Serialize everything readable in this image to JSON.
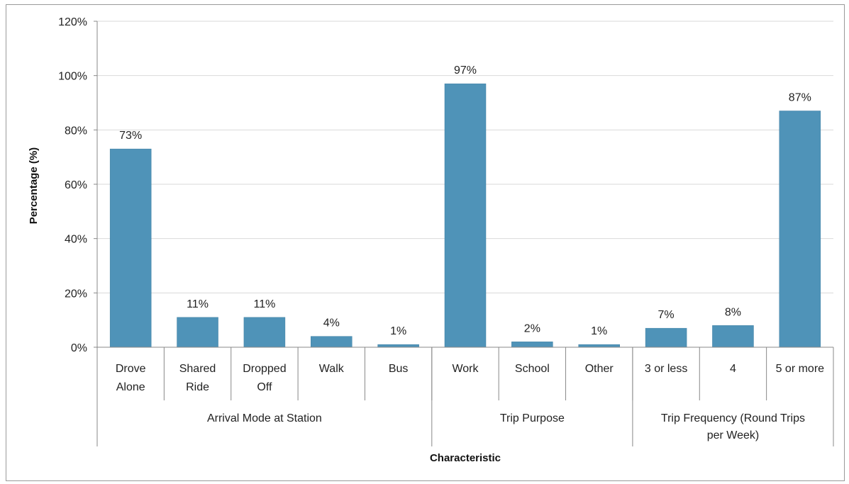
{
  "chart_data": {
    "type": "bar",
    "xlabel": "Characteristic",
    "ylabel": "Percentage (%)",
    "ylim": [
      0,
      120
    ],
    "yticks": [
      "0%",
      "20%",
      "40%",
      "60%",
      "80%",
      "100%",
      "120%"
    ],
    "grid": true,
    "legend": "none",
    "bar_color": "#4f93b8",
    "categories": [
      {
        "label": [
          "Drove",
          "Alone"
        ],
        "value": 73,
        "value_label": "73%"
      },
      {
        "label": [
          "Shared",
          "Ride"
        ],
        "value": 11,
        "value_label": "11%"
      },
      {
        "label": [
          "Dropped",
          "Off"
        ],
        "value": 11,
        "value_label": "11%"
      },
      {
        "label": [
          "Walk"
        ],
        "value": 4,
        "value_label": "4%"
      },
      {
        "label": [
          "Bus"
        ],
        "value": 1,
        "value_label": "1%"
      },
      {
        "label": [
          "Work"
        ],
        "value": 97,
        "value_label": "97%"
      },
      {
        "label": [
          "School"
        ],
        "value": 2,
        "value_label": "2%"
      },
      {
        "label": [
          "Other"
        ],
        "value": 1,
        "value_label": "1%"
      },
      {
        "label": [
          "3 or less"
        ],
        "value": 7,
        "value_label": "7%"
      },
      {
        "label": [
          "4"
        ],
        "value": 8,
        "value_label": "8%"
      },
      {
        "label": [
          "5 or more"
        ],
        "value": 87,
        "value_label": "87%"
      }
    ],
    "groups": [
      {
        "label": [
          "Arrival Mode at Station"
        ],
        "count": 5
      },
      {
        "label": [
          "Trip Purpose"
        ],
        "count": 3
      },
      {
        "label": [
          "Trip Frequency (Round Trips",
          "per Week)"
        ],
        "count": 3
      }
    ]
  }
}
